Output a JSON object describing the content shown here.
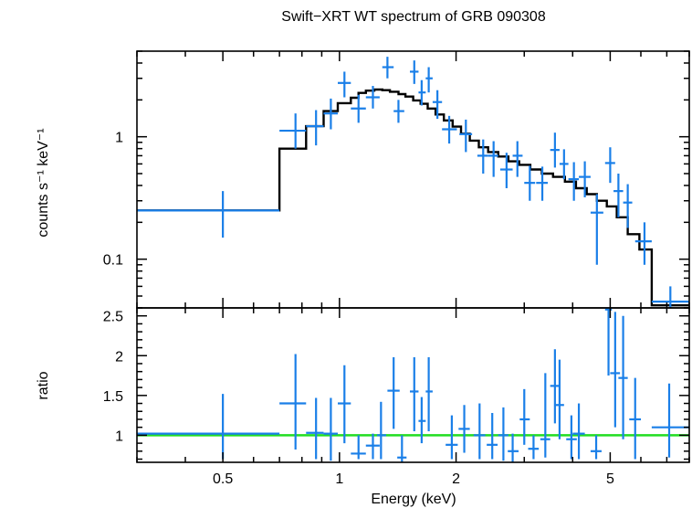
{
  "chart_data": [
    {
      "type": "scatter",
      "panel": "spectrum",
      "title": "Swift−XRT WT spectrum of GRB 090308",
      "xlabel": "",
      "ylabel": "counts s⁻¹ keV⁻¹",
      "x_scale": "log",
      "y_scale": "log",
      "xlim": [
        0.3,
        8.0
      ],
      "ylim": [
        0.04,
        5.0
      ],
      "y_tick_labels": [
        {
          "value": 0.1,
          "label": "0.1"
        },
        {
          "value": 1,
          "label": "1"
        }
      ],
      "series": [
        {
          "kind": "data",
          "color": "#1a7fe8",
          "points": [
            {
              "x": 0.5,
              "xlo": 0.3,
              "xhi": 0.7,
              "y": 0.25,
              "ylo": 0.15,
              "yhi": 0.36
            },
            {
              "x": 0.77,
              "xlo": 0.7,
              "xhi": 0.82,
              "y": 1.12,
              "ylo": 0.8,
              "yhi": 1.55
            },
            {
              "x": 0.87,
              "xlo": 0.82,
              "xhi": 0.91,
              "y": 1.22,
              "ylo": 0.85,
              "yhi": 1.65
            },
            {
              "x": 0.95,
              "xlo": 0.91,
              "xhi": 0.99,
              "y": 1.55,
              "ylo": 1.15,
              "yhi": 2.05
            },
            {
              "x": 1.03,
              "xlo": 0.99,
              "xhi": 1.07,
              "y": 2.75,
              "ylo": 2.1,
              "yhi": 3.4
            },
            {
              "x": 1.12,
              "xlo": 1.07,
              "xhi": 1.17,
              "y": 1.7,
              "ylo": 1.3,
              "yhi": 2.2
            },
            {
              "x": 1.22,
              "xlo": 1.17,
              "xhi": 1.27,
              "y": 2.1,
              "ylo": 1.7,
              "yhi": 2.6
            },
            {
              "x": 1.33,
              "xlo": 1.29,
              "xhi": 1.38,
              "y": 3.7,
              "ylo": 3.0,
              "yhi": 4.5
            },
            {
              "x": 1.42,
              "xlo": 1.38,
              "xhi": 1.47,
              "y": 1.62,
              "ylo": 1.3,
              "yhi": 2.0
            },
            {
              "x": 1.56,
              "xlo": 1.52,
              "xhi": 1.6,
              "y": 3.4,
              "ylo": 2.7,
              "yhi": 4.2
            },
            {
              "x": 1.63,
              "xlo": 1.6,
              "xhi": 1.67,
              "y": 2.3,
              "ylo": 1.8,
              "yhi": 2.9
            },
            {
              "x": 1.7,
              "xlo": 1.67,
              "xhi": 1.74,
              "y": 3.0,
              "ylo": 2.3,
              "yhi": 3.7
            },
            {
              "x": 1.79,
              "xlo": 1.74,
              "xhi": 1.84,
              "y": 1.92,
              "ylo": 1.4,
              "yhi": 2.4
            },
            {
              "x": 1.92,
              "xlo": 1.84,
              "xhi": 2.01,
              "y": 1.15,
              "ylo": 0.88,
              "yhi": 1.48
            },
            {
              "x": 2.12,
              "xlo": 2.04,
              "xhi": 2.2,
              "y": 1.05,
              "ylo": 0.75,
              "yhi": 1.38
            },
            {
              "x": 2.35,
              "xlo": 2.27,
              "xhi": 2.42,
              "y": 0.7,
              "ylo": 0.5,
              "yhi": 0.95
            },
            {
              "x": 2.5,
              "xlo": 2.42,
              "xhi": 2.57,
              "y": 0.7,
              "ylo": 0.47,
              "yhi": 0.92
            },
            {
              "x": 2.7,
              "xlo": 2.6,
              "xhi": 2.8,
              "y": 0.54,
              "ylo": 0.38,
              "yhi": 0.74
            },
            {
              "x": 2.88,
              "xlo": 2.8,
              "xhi": 2.97,
              "y": 0.7,
              "ylo": 0.47,
              "yhi": 0.92
            },
            {
              "x": 3.1,
              "xlo": 3.0,
              "xhi": 3.2,
              "y": 0.42,
              "ylo": 0.3,
              "yhi": 0.58
            },
            {
              "x": 3.34,
              "xlo": 3.22,
              "xhi": 3.45,
              "y": 0.42,
              "ylo": 0.3,
              "yhi": 0.57
            },
            {
              "x": 3.6,
              "xlo": 3.5,
              "xhi": 3.7,
              "y": 0.78,
              "ylo": 0.56,
              "yhi": 1.08
            },
            {
              "x": 3.8,
              "xlo": 3.7,
              "xhi": 3.9,
              "y": 0.6,
              "ylo": 0.45,
              "yhi": 0.79
            },
            {
              "x": 4.03,
              "xlo": 3.9,
              "xhi": 4.15,
              "y": 0.45,
              "ylo": 0.3,
              "yhi": 0.62
            },
            {
              "x": 4.3,
              "xlo": 4.15,
              "xhi": 4.45,
              "y": 0.47,
              "ylo": 0.32,
              "yhi": 0.63
            },
            {
              "x": 4.62,
              "xlo": 4.45,
              "xhi": 4.8,
              "y": 0.24,
              "ylo": 0.09,
              "yhi": 0.34
            },
            {
              "x": 5.0,
              "xlo": 4.85,
              "xhi": 5.15,
              "y": 0.61,
              "ylo": 0.42,
              "yhi": 0.82
            },
            {
              "x": 5.25,
              "xlo": 5.1,
              "xhi": 5.4,
              "y": 0.36,
              "ylo": 0.22,
              "yhi": 0.5
            },
            {
              "x": 5.55,
              "xlo": 5.4,
              "xhi": 5.7,
              "y": 0.29,
              "ylo": 0.18,
              "yhi": 0.41
            },
            {
              "x": 6.13,
              "xlo": 5.8,
              "xhi": 6.4,
              "y": 0.14,
              "ylo": 0.09,
              "yhi": 0.2
            },
            {
              "x": 7.15,
              "xlo": 6.4,
              "xhi": 8.0,
              "y": 0.045,
              "ylo": 0.03,
              "yhi": 0.06
            }
          ]
        },
        {
          "kind": "model",
          "color": "#000000",
          "steps": [
            {
              "x1": 0.3,
              "x2": 0.7,
              "y": 0.25
            },
            {
              "x1": 0.7,
              "x2": 0.82,
              "y": 0.8
            },
            {
              "x1": 0.82,
              "x2": 0.91,
              "y": 1.22
            },
            {
              "x1": 0.91,
              "x2": 0.99,
              "y": 1.62
            },
            {
              "x1": 0.99,
              "x2": 1.07,
              "y": 1.88
            },
            {
              "x1": 1.07,
              "x2": 1.12,
              "y": 2.08
            },
            {
              "x1": 1.12,
              "x2": 1.17,
              "y": 2.28
            },
            {
              "x1": 1.17,
              "x2": 1.23,
              "y": 2.38
            },
            {
              "x1": 1.23,
              "x2": 1.29,
              "y": 2.43
            },
            {
              "x1": 1.29,
              "x2": 1.35,
              "y": 2.4
            },
            {
              "x1": 1.35,
              "x2": 1.42,
              "y": 2.33
            },
            {
              "x1": 1.42,
              "x2": 1.48,
              "y": 2.23
            },
            {
              "x1": 1.48,
              "x2": 1.55,
              "y": 2.13
            },
            {
              "x1": 1.55,
              "x2": 1.62,
              "y": 1.98
            },
            {
              "x1": 1.62,
              "x2": 1.69,
              "y": 1.86
            },
            {
              "x1": 1.69,
              "x2": 1.77,
              "y": 1.7
            },
            {
              "x1": 1.77,
              "x2": 1.86,
              "y": 1.52
            },
            {
              "x1": 1.86,
              "x2": 1.96,
              "y": 1.36
            },
            {
              "x1": 1.96,
              "x2": 2.06,
              "y": 1.21
            },
            {
              "x1": 2.06,
              "x2": 2.17,
              "y": 1.06
            },
            {
              "x1": 2.17,
              "x2": 2.29,
              "y": 0.93
            },
            {
              "x1": 2.29,
              "x2": 2.42,
              "y": 0.82
            },
            {
              "x1": 2.42,
              "x2": 2.57,
              "y": 0.75
            },
            {
              "x1": 2.57,
              "x2": 2.73,
              "y": 0.69
            },
            {
              "x1": 2.73,
              "x2": 2.91,
              "y": 0.63
            },
            {
              "x1": 2.91,
              "x2": 3.11,
              "y": 0.59
            },
            {
              "x1": 3.11,
              "x2": 3.33,
              "y": 0.54
            },
            {
              "x1": 3.33,
              "x2": 3.56,
              "y": 0.5
            },
            {
              "x1": 3.56,
              "x2": 3.82,
              "y": 0.47
            },
            {
              "x1": 3.82,
              "x2": 4.08,
              "y": 0.43
            },
            {
              "x1": 4.08,
              "x2": 4.35,
              "y": 0.38
            },
            {
              "x1": 4.35,
              "x2": 4.62,
              "y": 0.34
            },
            {
              "x1": 4.62,
              "x2": 4.9,
              "y": 0.3
            },
            {
              "x1": 4.9,
              "x2": 5.2,
              "y": 0.27
            },
            {
              "x1": 5.2,
              "x2": 5.55,
              "y": 0.22
            },
            {
              "x1": 5.55,
              "x2": 5.95,
              "y": 0.16
            },
            {
              "x1": 5.95,
              "x2": 6.4,
              "y": 0.12
            },
            {
              "x1": 6.4,
              "x2": 8.0,
              "y": 0.042
            }
          ]
        }
      ]
    },
    {
      "type": "scatter",
      "panel": "ratio",
      "title": "",
      "xlabel": "Energy (keV)",
      "ylabel": "ratio",
      "x_scale": "log",
      "y_scale": "linear",
      "xlim": [
        0.3,
        8.0
      ],
      "ylim": [
        0.66,
        2.6
      ],
      "x_tick_labels": [
        {
          "value": 0.5,
          "label": "0.5"
        },
        {
          "value": 1,
          "label": "1"
        },
        {
          "value": 2,
          "label": "2"
        },
        {
          "value": 5,
          "label": "5"
        }
      ],
      "y_tick_labels": [
        {
          "value": 1,
          "label": "1"
        },
        {
          "value": 1.5,
          "label": "1.5"
        },
        {
          "value": 2,
          "label": "2"
        },
        {
          "value": 2.5,
          "label": "2.5"
        }
      ],
      "reference_line": {
        "y": 1,
        "color": "#22dd22"
      },
      "series": [
        {
          "kind": "data",
          "color": "#1a7fe8",
          "points": [
            {
              "x": 0.5,
              "xlo": 0.3,
              "xhi": 0.7,
              "y": 1.02,
              "ylo": 0.7,
              "yhi": 1.52
            },
            {
              "x": 0.77,
              "xlo": 0.7,
              "xhi": 0.82,
              "y": 1.4,
              "ylo": 0.82,
              "yhi": 2.02
            },
            {
              "x": 0.87,
              "xlo": 0.82,
              "xhi": 0.91,
              "y": 1.03,
              "ylo": 0.7,
              "yhi": 1.47
            },
            {
              "x": 0.95,
              "xlo": 0.91,
              "xhi": 0.99,
              "y": 1.02,
              "ylo": 0.68,
              "yhi": 1.47
            },
            {
              "x": 1.03,
              "xlo": 0.99,
              "xhi": 1.07,
              "y": 1.4,
              "ylo": 0.9,
              "yhi": 1.88
            },
            {
              "x": 1.12,
              "xlo": 1.07,
              "xhi": 1.17,
              "y": 0.77,
              "ylo": 0.7,
              "yhi": 1.0
            },
            {
              "x": 1.22,
              "xlo": 1.17,
              "xhi": 1.27,
              "y": 0.87,
              "ylo": 0.7,
              "yhi": 1.02
            },
            {
              "x": 1.28,
              "xlo": 1.25,
              "xhi": 1.32,
              "y": 1.0,
              "ylo": 0.7,
              "yhi": 1.42
            },
            {
              "x": 1.38,
              "xlo": 1.33,
              "xhi": 1.43,
              "y": 1.56,
              "ylo": 1.08,
              "yhi": 1.98
            },
            {
              "x": 1.45,
              "xlo": 1.41,
              "xhi": 1.49,
              "y": 0.72,
              "ylo": 0.66,
              "yhi": 1.0
            },
            {
              "x": 1.56,
              "xlo": 1.52,
              "xhi": 1.6,
              "y": 1.55,
              "ylo": 1.05,
              "yhi": 1.98
            },
            {
              "x": 1.63,
              "xlo": 1.6,
              "xhi": 1.67,
              "y": 1.18,
              "ylo": 0.9,
              "yhi": 1.48
            },
            {
              "x": 1.7,
              "xlo": 1.67,
              "xhi": 1.74,
              "y": 1.55,
              "ylo": 1.05,
              "yhi": 1.98
            },
            {
              "x": 1.95,
              "xlo": 1.88,
              "xhi": 2.02,
              "y": 0.88,
              "ylo": 0.7,
              "yhi": 1.25
            },
            {
              "x": 2.1,
              "xlo": 2.03,
              "xhi": 2.17,
              "y": 1.08,
              "ylo": 0.78,
              "yhi": 1.38
            },
            {
              "x": 2.3,
              "xlo": 2.22,
              "xhi": 2.38,
              "y": 1.0,
              "ylo": 0.7,
              "yhi": 1.4
            },
            {
              "x": 2.48,
              "xlo": 2.4,
              "xhi": 2.56,
              "y": 0.88,
              "ylo": 0.7,
              "yhi": 1.28
            },
            {
              "x": 2.65,
              "xlo": 2.57,
              "xhi": 2.73,
              "y": 1.0,
              "ylo": 0.68,
              "yhi": 1.35
            },
            {
              "x": 2.8,
              "xlo": 2.72,
              "xhi": 2.9,
              "y": 0.8,
              "ylo": 0.66,
              "yhi": 1.02
            },
            {
              "x": 3.0,
              "xlo": 2.92,
              "xhi": 3.1,
              "y": 1.2,
              "ylo": 0.88,
              "yhi": 1.58
            },
            {
              "x": 3.17,
              "xlo": 3.07,
              "xhi": 3.27,
              "y": 0.83,
              "ylo": 0.7,
              "yhi": 1.0
            },
            {
              "x": 3.4,
              "xlo": 3.3,
              "xhi": 3.5,
              "y": 0.95,
              "ylo": 0.72,
              "yhi": 1.78
            },
            {
              "x": 3.6,
              "xlo": 3.5,
              "xhi": 3.7,
              "y": 1.62,
              "ylo": 1.15,
              "yhi": 2.08
            },
            {
              "x": 3.7,
              "xlo": 3.6,
              "xhi": 3.8,
              "y": 1.38,
              "ylo": 0.95,
              "yhi": 1.95
            },
            {
              "x": 3.97,
              "xlo": 3.85,
              "xhi": 4.1,
              "y": 0.95,
              "ylo": 0.7,
              "yhi": 1.25
            },
            {
              "x": 4.15,
              "xlo": 4.0,
              "xhi": 4.3,
              "y": 1.02,
              "ylo": 0.7,
              "yhi": 1.4
            },
            {
              "x": 4.6,
              "xlo": 4.45,
              "xhi": 4.75,
              "y": 0.8,
              "ylo": 0.7,
              "yhi": 1.0
            },
            {
              "x": 4.95,
              "xlo": 4.85,
              "xhi": 5.05,
              "y": 2.58,
              "ylo": 1.75,
              "yhi": 2.6
            },
            {
              "x": 5.15,
              "xlo": 5.0,
              "xhi": 5.3,
              "y": 1.78,
              "ylo": 1.1,
              "yhi": 2.55
            },
            {
              "x": 5.4,
              "xlo": 5.25,
              "xhi": 5.55,
              "y": 1.72,
              "ylo": 0.95,
              "yhi": 2.5
            },
            {
              "x": 5.8,
              "xlo": 5.6,
              "xhi": 6.0,
              "y": 1.2,
              "ylo": 0.7,
              "yhi": 1.72
            },
            {
              "x": 7.1,
              "xlo": 6.4,
              "xhi": 8.0,
              "y": 1.1,
              "ylo": 0.72,
              "yhi": 1.65
            }
          ]
        }
      ]
    }
  ]
}
